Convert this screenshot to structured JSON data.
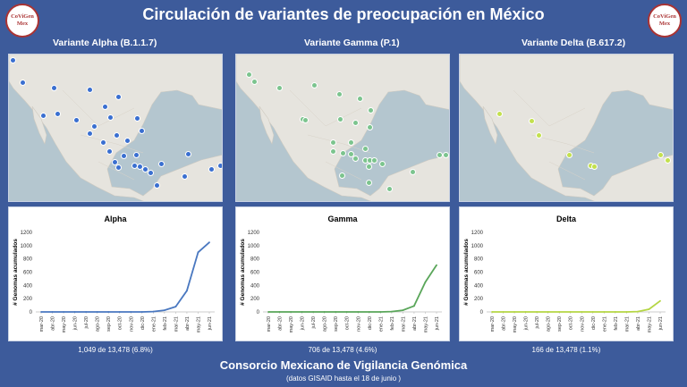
{
  "title": "Circulación de variantes de preocupación en México",
  "logo": {
    "line1": "CoViGen",
    "line2": "Mex"
  },
  "footer": {
    "title": "Consorcio Mexicano de Vigilancia Genómica",
    "subtitle": "(datos GISAID hasta el 18 de junio )"
  },
  "panels": [
    {
      "label": "Variante Alpha (B.1.1.7)",
      "chart_title": "Alpha",
      "count": "1,049 de 13,478 (6.8%)",
      "color": "#4a78c0",
      "dot_color": "#3a6fd0"
    },
    {
      "label": "Variante Gamma (P.1)",
      "chart_title": "Gamma",
      "count": "706 de 13,478 (4.6%)",
      "color": "#5aa65a",
      "dot_color": "#7cc48e"
    },
    {
      "label": "Variante Delta (B.617.2)",
      "chart_title": "Delta",
      "count": "166 de 13,478 (1.1%)",
      "color": "#b5d645",
      "dot_color": "#c3e04e"
    }
  ],
  "chart_data": [
    {
      "type": "line",
      "title": "Alpha",
      "ylabel": "# Genomas acumulados",
      "xlabel": "",
      "categories": [
        "mar-20",
        "abr-20",
        "may-20",
        "jun-20",
        "jul-20",
        "ago-20",
        "sep-20",
        "oct-20",
        "nov-20",
        "dic-20",
        "ene-21",
        "feb-21",
        "mar-21",
        "abr-21",
        "may-21",
        "jun-21"
      ],
      "values": [
        0,
        0,
        0,
        0,
        0,
        0,
        0,
        0,
        0,
        0,
        5,
        25,
        80,
        320,
        900,
        1049
      ],
      "ylim": [
        0,
        1200
      ],
      "yticks": [
        0,
        200,
        400,
        600,
        800,
        1000,
        1200
      ],
      "color": "#4a78c0"
    },
    {
      "type": "line",
      "title": "Gamma",
      "ylabel": "# Genomas acumulados",
      "xlabel": "",
      "categories": [
        "mar-20",
        "abr-20",
        "may-20",
        "jun-20",
        "jul-20",
        "ago-20",
        "sep-20",
        "oct-20",
        "nov-20",
        "dic-20",
        "ene-21",
        "feb-21",
        "mar-21",
        "abr-21",
        "may-21",
        "jun-21"
      ],
      "values": [
        0,
        0,
        0,
        0,
        0,
        0,
        0,
        0,
        0,
        0,
        0,
        5,
        25,
        90,
        450,
        706
      ],
      "ylim": [
        0,
        1200
      ],
      "yticks": [
        0,
        200,
        400,
        600,
        800,
        1000,
        1200
      ],
      "color": "#5aa65a"
    },
    {
      "type": "line",
      "title": "Delta",
      "ylabel": "# Genomas acumulados",
      "xlabel": "",
      "categories": [
        "mar-20",
        "abr-20",
        "may-20",
        "jun-20",
        "jul-20",
        "ago-20",
        "sep-20",
        "oct-20",
        "nov-20",
        "dic-20",
        "ene-21",
        "feb-21",
        "mar-21",
        "abr-21",
        "may-21",
        "jun-21"
      ],
      "values": [
        0,
        0,
        0,
        0,
        0,
        0,
        0,
        0,
        0,
        0,
        0,
        0,
        0,
        5,
        40,
        166
      ],
      "ylim": [
        0,
        1200
      ],
      "yticks": [
        0,
        200,
        400,
        600,
        800,
        1000,
        1200
      ],
      "color": "#b5d645"
    }
  ]
}
